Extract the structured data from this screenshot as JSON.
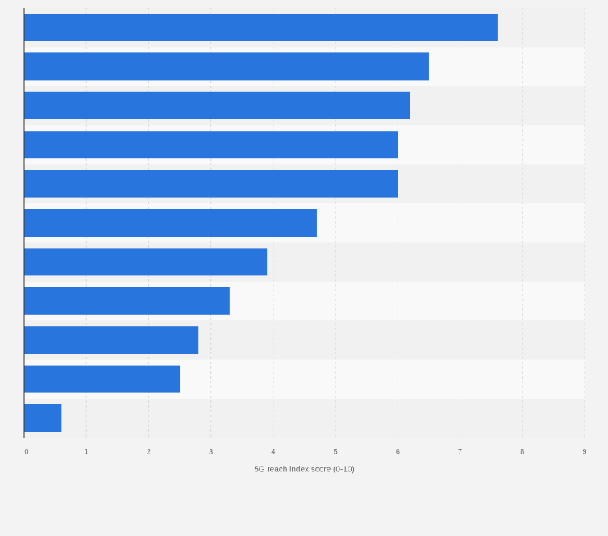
{
  "chart_data": {
    "type": "bar",
    "orientation": "horizontal",
    "categories": [
      "",
      "",
      "",
      "",
      "",
      "",
      "",
      "",
      "",
      "",
      ""
    ],
    "values": [
      7.6,
      6.5,
      6.2,
      6.0,
      6.0,
      4.7,
      3.9,
      3.3,
      2.8,
      2.5,
      0.6
    ],
    "xlabel": "5G reach index score (0-10)",
    "xlim": [
      0,
      9
    ],
    "xticks": [
      "0",
      "1",
      "2",
      "3",
      "4",
      "5",
      "6",
      "7",
      "8",
      "9"
    ],
    "grid": true,
    "legend": "none"
  },
  "colors": {
    "bar": "#2876dd",
    "grid": "#d9d9d9",
    "axis": "#333333",
    "band_light": "#f9f9f9",
    "band_dark": "#f1f1f1",
    "label": "#666666"
  }
}
